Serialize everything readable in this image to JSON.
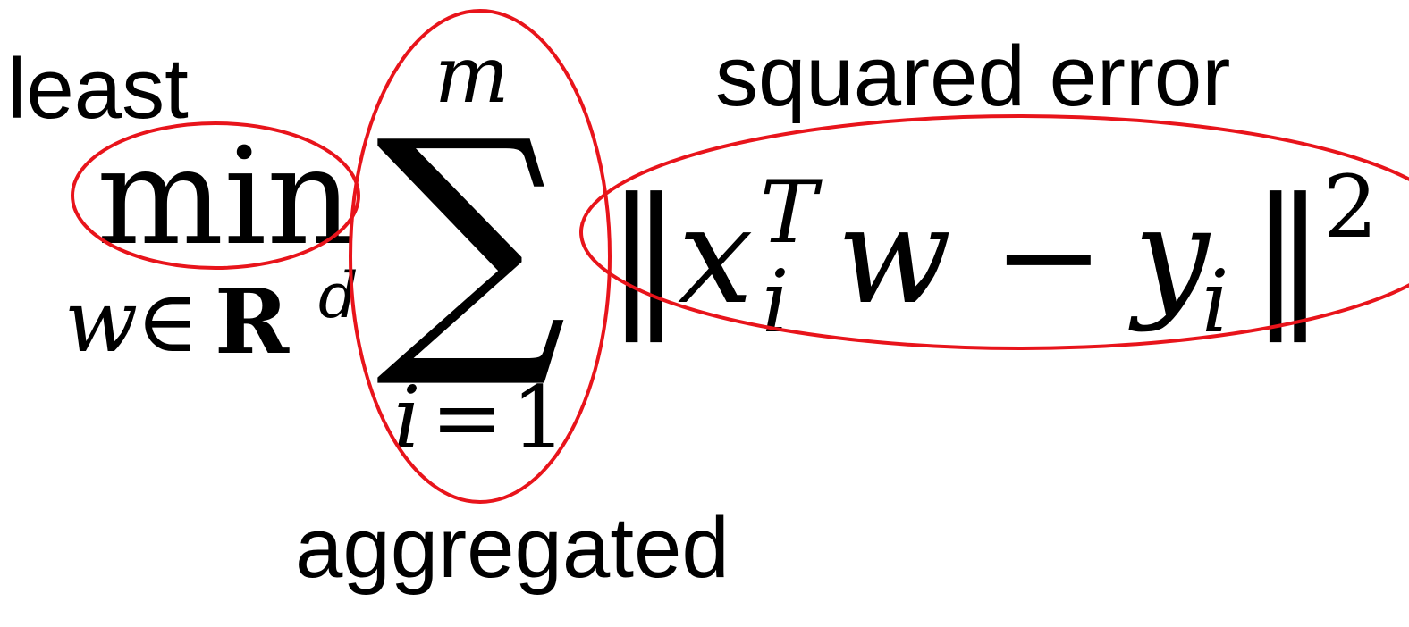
{
  "annotations": {
    "least": "least",
    "squared_error": "squared error",
    "aggregated": "aggregated"
  },
  "formula": {
    "operator": "min",
    "constraint_var": "w",
    "constraint_in": "∈",
    "constraint_set": "R",
    "constraint_dim": "d",
    "sum_symbol": "∑",
    "sum_upper": "m",
    "sum_lower_var": "i",
    "sum_lower_eq": "=",
    "sum_lower_val": "1",
    "norm_open": "‖",
    "x_var": "x",
    "x_sub": "i",
    "x_sup": "T",
    "w_var": "w",
    "minus": "−",
    "y_var": "y",
    "y_sub": "i",
    "norm_close": "‖",
    "norm_power": "2"
  },
  "colors": {
    "highlight": "#e8141b",
    "text": "#000000"
  }
}
